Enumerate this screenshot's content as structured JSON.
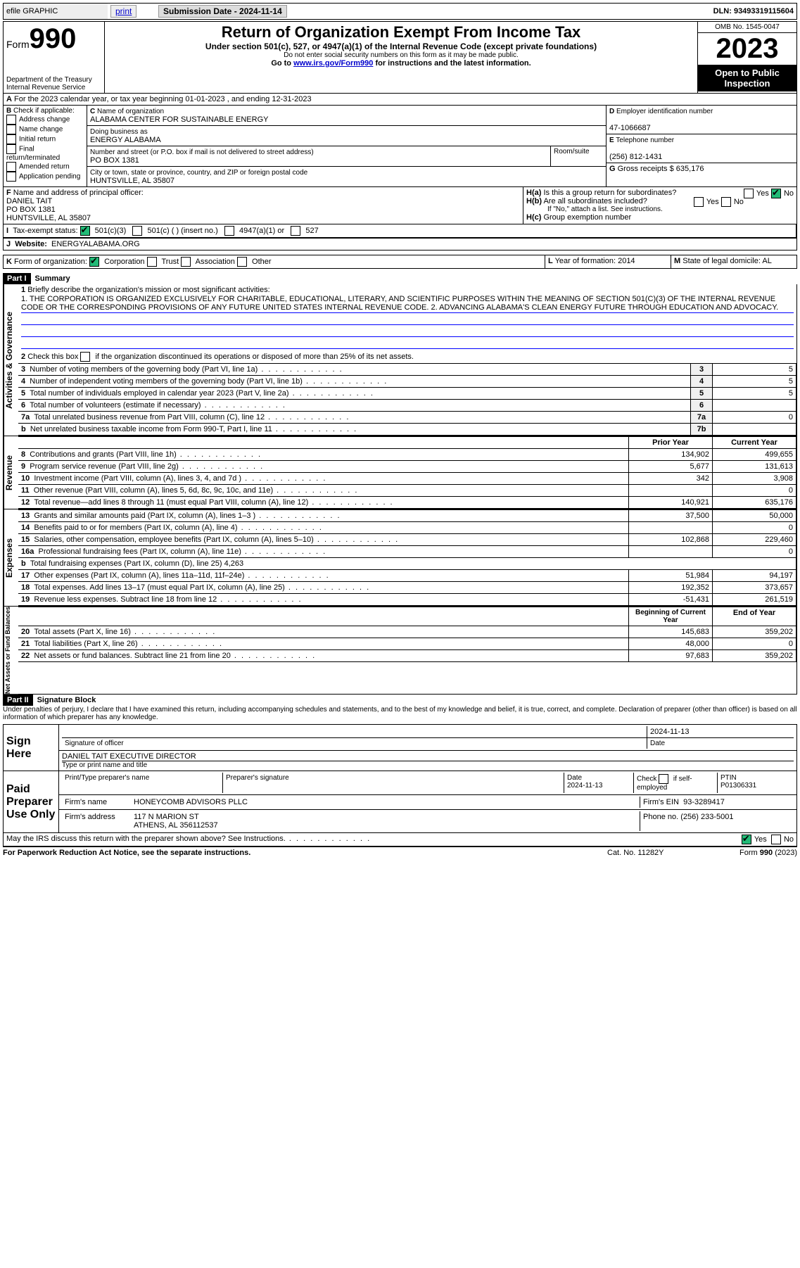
{
  "topbar": {
    "efile": "efile GRAPHIC",
    "print": "print",
    "sub_label": "Submission Date - 2024-11-14",
    "dln": "DLN: 93493319115604"
  },
  "header": {
    "form_word": "Form",
    "form_num": "990",
    "dept": "Department of the Treasury",
    "irs": "Internal Revenue Service",
    "title": "Return of Organization Exempt From Income Tax",
    "subtitle": "Under section 501(c), 527, or 4947(a)(1) of the Internal Revenue Code (except private foundations)",
    "warn": "Do not enter social security numbers on this form as it may be made public.",
    "goto": "Go to ",
    "goto_link": "www.irs.gov/Form990",
    "goto_rest": " for instructions and the latest information.",
    "omb": "OMB No. 1545-0047",
    "year": "2023",
    "open": "Open to Public Inspection"
  },
  "periodA": "For the 2023 calendar year, or tax year beginning 01-01-2023   , and ending 12-31-2023",
  "boxB": {
    "label": "Check if applicable:",
    "items": [
      "Address change",
      "Name change",
      "Initial return",
      "Final return/terminated",
      "Amended return",
      "Application pending"
    ]
  },
  "boxC": {
    "name_label": "Name of organization",
    "name": "ALABAMA CENTER FOR SUSTAINABLE ENERGY",
    "dba_label": "Doing business as",
    "dba": "ENERGY ALABAMA",
    "street_label": "Number and street (or P.O. box if mail is not delivered to street address)",
    "room_label": "Room/suite",
    "street": "PO BOX 1381",
    "city_label": "City or town, state or province, country, and ZIP or foreign postal code",
    "city": "HUNTSVILLE, AL  35807"
  },
  "boxD": {
    "label": "Employer identification number",
    "value": "47-1066687"
  },
  "boxE": {
    "label": "Telephone number",
    "value": "(256) 812-1431"
  },
  "boxG": {
    "label": "Gross receipts $",
    "value": "635,176"
  },
  "boxF": {
    "label": "Name and address of principal officer:",
    "name": "DANIEL TAIT",
    "addr1": "PO BOX 1381",
    "addr2": "HUNTSVILLE, AL  35807"
  },
  "boxH": {
    "a": "Is this a group return for subordinates?",
    "b": "Are all subordinates included?",
    "note": "If \"No,\" attach a list. See instructions.",
    "c": "Group exemption number",
    "yes": "Yes",
    "no": "No"
  },
  "boxI": {
    "label": "Tax-exempt status:",
    "o1": "501(c)(3)",
    "o2": "501(c) (  ) (insert no.)",
    "o3": "4947(a)(1) or",
    "o4": "527"
  },
  "boxJ": {
    "label": "Website:",
    "value": "ENERGYALABAMA.ORG"
  },
  "boxK": {
    "label": "Form of organization:",
    "o1": "Corporation",
    "o2": "Trust",
    "o3": "Association",
    "o4": "Other"
  },
  "boxL": {
    "label": "Year of formation:",
    "value": "2014"
  },
  "boxM": {
    "label": "State of legal domicile:",
    "value": "AL"
  },
  "part1": {
    "bar": "Part I",
    "title": "Summary",
    "side_gov": "Activities & Governance",
    "side_rev": "Revenue",
    "side_exp": "Expenses",
    "side_net": "Net Assets or Fund Balances",
    "l1_label": "Briefly describe the organization's mission or most significant activities:",
    "l1_text": "1. THE CORPORATION IS ORGANIZED EXCLUSIVELY FOR CHARITABLE, EDUCATIONAL, LITERARY, AND SCIENTIFIC PURPOSES WITHIN THE MEANING OF SECTION 501(C)(3) OF THE INTERNAL REVENUE CODE OR THE CORRESPONDING PROVISIONS OF ANY FUTURE UNITED STATES INTERNAL REVENUE CODE. 2. ADVANCING ALABAMA'S CLEAN ENERGY FUTURE THROUGH EDUCATION AND ADVOCACY.",
    "l2": "Check this box      if the organization discontinued its operations or disposed of more than 25% of its net assets.",
    "rows_gov": [
      {
        "n": "3",
        "t": "Number of voting members of the governing body (Part VI, line 1a)",
        "v": "5"
      },
      {
        "n": "4",
        "t": "Number of independent voting members of the governing body (Part VI, line 1b)",
        "v": "5"
      },
      {
        "n": "5",
        "t": "Total number of individuals employed in calendar year 2023 (Part V, line 2a)",
        "v": "5"
      },
      {
        "n": "6",
        "t": "Total number of volunteers (estimate if necessary)",
        "v": ""
      },
      {
        "n": "7a",
        "t": "Total unrelated business revenue from Part VIII, column (C), line 12",
        "v": "0"
      },
      {
        "n": "b",
        "t": "Net unrelated business taxable income from Form 990-T, Part I, line 11",
        "k": "7b",
        "v": ""
      }
    ],
    "hdr_prior": "Prior Year",
    "hdr_curr": "Current Year",
    "rows_rev": [
      {
        "n": "8",
        "t": "Contributions and grants (Part VIII, line 1h)",
        "p": "134,902",
        "c": "499,655"
      },
      {
        "n": "9",
        "t": "Program service revenue (Part VIII, line 2g)",
        "p": "5,677",
        "c": "131,613"
      },
      {
        "n": "10",
        "t": "Investment income (Part VIII, column (A), lines 3, 4, and 7d )",
        "p": "342",
        "c": "3,908"
      },
      {
        "n": "11",
        "t": "Other revenue (Part VIII, column (A), lines 5, 6d, 8c, 9c, 10c, and 11e)",
        "p": "",
        "c": "0"
      },
      {
        "n": "12",
        "t": "Total revenue—add lines 8 through 11 (must equal Part VIII, column (A), line 12)",
        "p": "140,921",
        "c": "635,176"
      }
    ],
    "rows_exp": [
      {
        "n": "13",
        "t": "Grants and similar amounts paid (Part IX, column (A), lines 1–3 )",
        "p": "37,500",
        "c": "50,000"
      },
      {
        "n": "14",
        "t": "Benefits paid to or for members (Part IX, column (A), line 4)",
        "p": "",
        "c": "0"
      },
      {
        "n": "15",
        "t": "Salaries, other compensation, employee benefits (Part IX, column (A), lines 5–10)",
        "p": "102,868",
        "c": "229,460"
      },
      {
        "n": "16a",
        "t": "Professional fundraising fees (Part IX, column (A), line 11e)",
        "p": "",
        "c": "0"
      },
      {
        "n": "b",
        "t": "Total fundraising expenses (Part IX, column (D), line 25) 4,263",
        "p": null,
        "c": null
      },
      {
        "n": "17",
        "t": "Other expenses (Part IX, column (A), lines 11a–11d, 11f–24e)",
        "p": "51,984",
        "c": "94,197"
      },
      {
        "n": "18",
        "t": "Total expenses. Add lines 13–17 (must equal Part IX, column (A), line 25)",
        "p": "192,352",
        "c": "373,657"
      },
      {
        "n": "19",
        "t": "Revenue less expenses. Subtract line 18 from line 12",
        "p": "-51,431",
        "c": "261,519"
      }
    ],
    "hdr_begin": "Beginning of Current Year",
    "hdr_end": "End of Year",
    "rows_net": [
      {
        "n": "20",
        "t": "Total assets (Part X, line 16)",
        "p": "145,683",
        "c": "359,202"
      },
      {
        "n": "21",
        "t": "Total liabilities (Part X, line 26)",
        "p": "48,000",
        "c": "0"
      },
      {
        "n": "22",
        "t": "Net assets or fund balances. Subtract line 21 from line 20",
        "p": "97,683",
        "c": "359,202"
      }
    ]
  },
  "part2": {
    "bar": "Part II",
    "title": "Signature Block",
    "decl": "Under penalties of perjury, I declare that I have examined this return, including accompanying schedules and statements, and to the best of my knowledge and belief, it is true, correct, and complete. Declaration of preparer (other than officer) is based on all information of which preparer has any knowledge.",
    "sign_here": "Sign Here",
    "sig_officer": "Signature of officer",
    "sig_name": "DANIEL TAIT EXECUTIVE DIRECTOR",
    "sig_type": "Type or print name and title",
    "sig_date_label": "Date",
    "sig_date": "2024-11-13",
    "paid": "Paid Preparer Use Only",
    "prep_name_label": "Print/Type preparer's name",
    "prep_sig_label": "Preparer's signature",
    "prep_date": "2024-11-13",
    "prep_check": "Check       if self-employed",
    "ptin_label": "PTIN",
    "ptin": "P01306331",
    "firm_name_label": "Firm's name",
    "firm_name": "HONEYCOMB ADVISORS PLLC",
    "firm_ein_label": "Firm's EIN",
    "firm_ein": "93-3289417",
    "firm_addr_label": "Firm's address",
    "firm_addr1": "117 N MARION ST",
    "firm_addr2": "ATHENS, AL  356112537",
    "firm_phone_label": "Phone no.",
    "firm_phone": "(256) 233-5001",
    "discuss": "May the IRS discuss this return with the preparer shown above? See Instructions.",
    "yes": "Yes",
    "no": "No"
  },
  "footer": {
    "pra": "For Paperwork Reduction Act Notice, see the separate instructions.",
    "cat": "Cat. No. 11282Y",
    "form": "Form 990 (2023)"
  },
  "colors": {
    "link": "#0000cc",
    "check_green": "#22bb77",
    "mission_rule": "#0000ff"
  }
}
